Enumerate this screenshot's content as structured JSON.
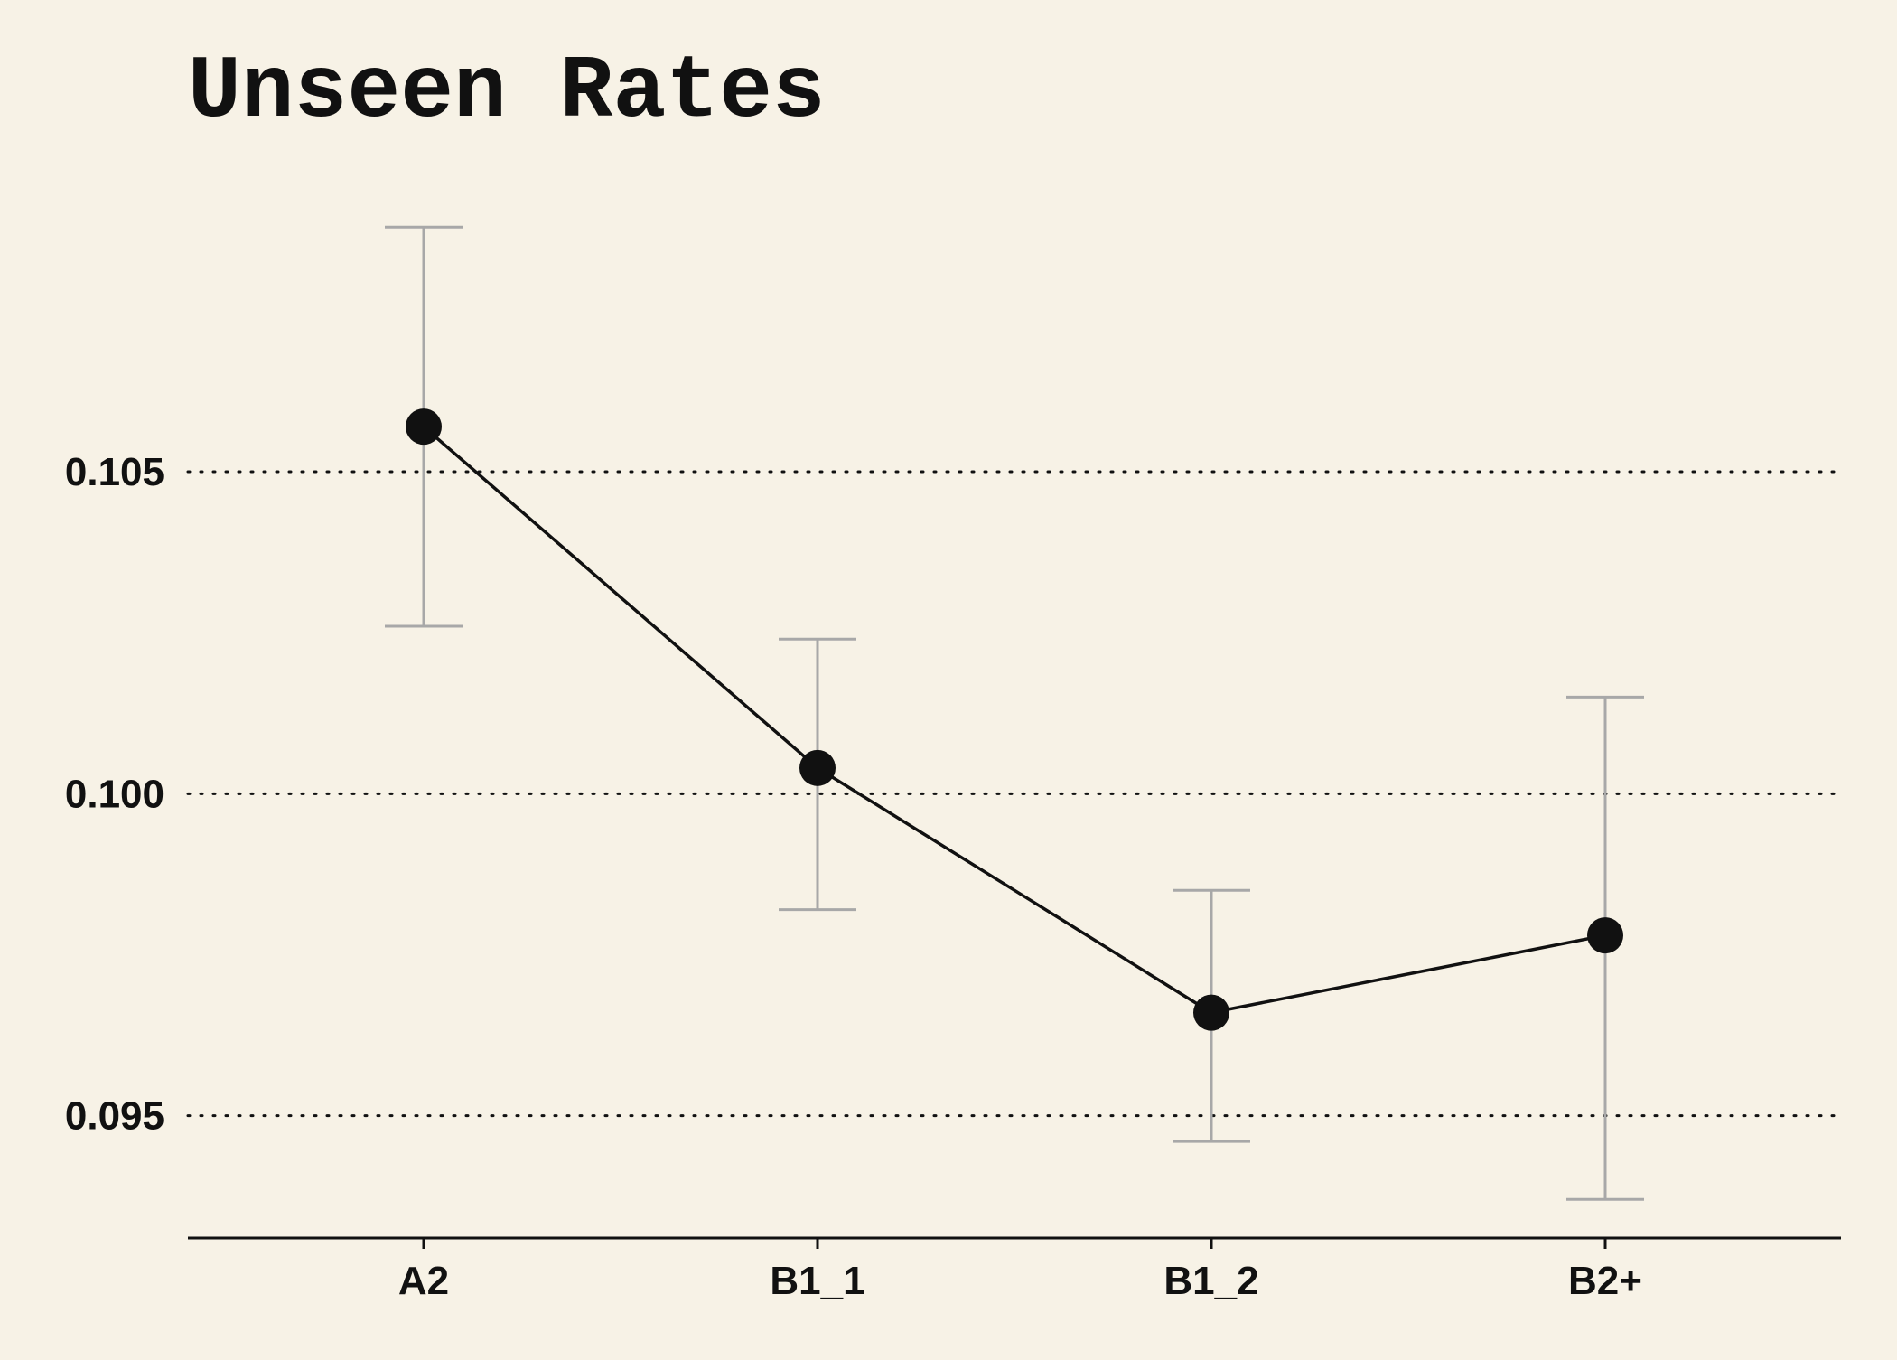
{
  "chart_data": {
    "type": "line",
    "title": "Unseen Rates",
    "xlabel": "",
    "ylabel": "",
    "categories": [
      "A2",
      "B1_1",
      "B1_2",
      "B2+"
    ],
    "series": [
      {
        "values": [
          0.1057,
          0.1004,
          0.0966,
          0.0978
        ],
        "error_low": [
          0.1026,
          0.0982,
          0.0946,
          0.0937
        ],
        "error_high": [
          0.1088,
          0.1024,
          0.0985,
          0.1015
        ]
      }
    ],
    "ylim": [
      0.0931,
      0.1098
    ],
    "yticks": [
      0.095,
      0.1,
      0.105
    ],
    "ytick_labels": [
      "0.095",
      "0.100",
      "0.105"
    ],
    "grid": "horizontal dotted",
    "legend": "none",
    "colors": {
      "background": "#f7f2e6",
      "line": "#111111",
      "marker": "#111111",
      "error_bar": "#a8a8a8",
      "axis": "#111111",
      "grid": "#111111"
    }
  }
}
